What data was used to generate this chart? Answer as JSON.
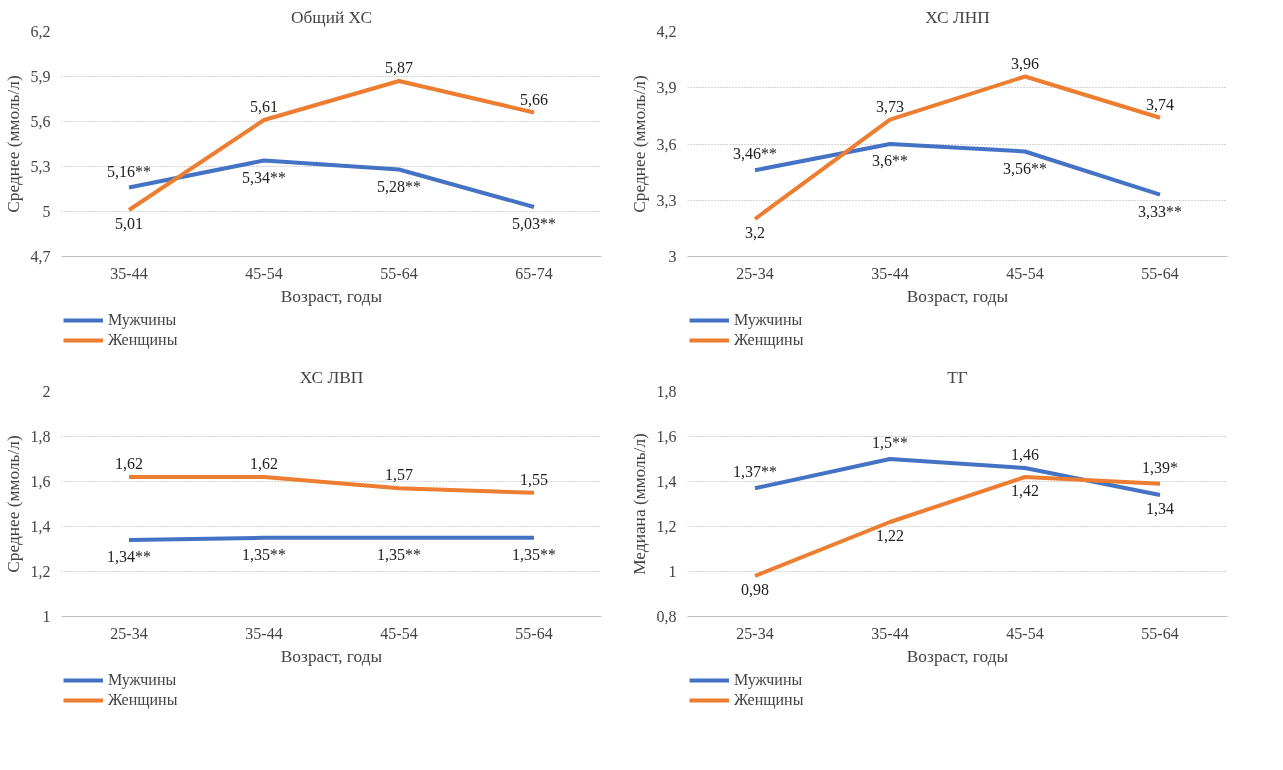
{
  "chart_data": [
    {
      "type": "line",
      "title": "Общий ХС",
      "xlabel": "Возраст, годы",
      "ylabel": "Среднее (ммоль/л)",
      "categories": [
        "35-44",
        "45-54",
        "55-64",
        "65-74"
      ],
      "ylim": [
        4.7,
        6.2
      ],
      "yticks": [
        {
          "value": 4.7,
          "label": "4,7"
        },
        5,
        {
          "value": 5.3,
          "label": "5,3"
        },
        {
          "value": 5.6,
          "label": "5,6"
        },
        {
          "value": 5.9,
          "label": "5,9"
        },
        {
          "value": 6.2,
          "label": "6,2"
        }
      ],
      "grid": "y",
      "legend": "bottom left",
      "series": [
        {
          "name": "Мужчины",
          "color": "#4472c4",
          "values": [
            5.16,
            5.34,
            5.28,
            5.03
          ],
          "value_labels": [
            "5,16**",
            "5,34**",
            "5,28**",
            "5,03**"
          ]
        },
        {
          "name": "Женщины",
          "color": "#ed7d31",
          "values": [
            5.01,
            5.61,
            5.87,
            5.66
          ],
          "value_labels": [
            "5,01",
            "5,61",
            "5,87",
            "5,66"
          ]
        }
      ]
    },
    {
      "type": "line",
      "title": "ХС ЛНП",
      "xlabel": "Возраст, годы",
      "ylabel": "Среднее (ммоль/л)",
      "categories": [
        "25-34",
        "35-44",
        "45-54",
        "55-64"
      ],
      "ylim": [
        3,
        4.2
      ],
      "yticks": [
        3,
        {
          "value": 3.3,
          "label": "3,3"
        },
        {
          "value": 3.6,
          "label": "3,6"
        },
        {
          "value": 3.9,
          "label": "3,9"
        },
        {
          "value": 4.2,
          "label": "4,2"
        }
      ],
      "grid": "y",
      "legend": "bottom left",
      "series": [
        {
          "name": "Мужчины",
          "color": "#4472c4",
          "values": [
            3.46,
            3.6,
            3.56,
            3.33
          ],
          "value_labels": [
            "3,46**",
            "3,6**",
            "3,56**",
            "3,33**"
          ]
        },
        {
          "name": "Женщины",
          "color": "#ed7d31",
          "values": [
            3.2,
            3.73,
            3.96,
            3.74
          ],
          "value_labels": [
            "3,2",
            "3,73",
            "3,96",
            "3,74"
          ]
        }
      ]
    },
    {
      "type": "line",
      "title": "ХС ЛВП",
      "xlabel": "Возраст, годы",
      "ylabel": "Среднее (ммоль/л)",
      "categories": [
        "25-34",
        "35-44",
        "45-54",
        "55-64"
      ],
      "ylim": [
        1,
        2
      ],
      "yticks": [
        1,
        {
          "value": 1.2,
          "label": "1,2"
        },
        {
          "value": 1.4,
          "label": "1,4"
        },
        {
          "value": 1.6,
          "label": "1,6"
        },
        {
          "value": 1.8,
          "label": "1,8"
        },
        2
      ],
      "grid": "y",
      "legend": "bottom left",
      "series": [
        {
          "name": "Мужчины",
          "color": "#4472c4",
          "values": [
            1.34,
            1.35,
            1.35,
            1.35
          ],
          "value_labels": [
            "1,34**",
            "1,35**",
            "1,35**",
            "1,35**"
          ]
        },
        {
          "name": "Женщины",
          "color": "#ed7d31",
          "values": [
            1.62,
            1.62,
            1.57,
            1.55
          ],
          "value_labels": [
            "1,62",
            "1,62",
            "1,57",
            "1,55"
          ]
        }
      ]
    },
    {
      "type": "line",
      "title": "ТГ",
      "xlabel": "Возраст, годы",
      "ylabel": "Медиана (ммоль/л)",
      "categories": [
        "25-34",
        "35-44",
        "45-54",
        "55-64"
      ],
      "ylim": [
        0.8,
        1.8
      ],
      "yticks": [
        {
          "value": 0.8,
          "label": "0,8"
        },
        1,
        {
          "value": 1.2,
          "label": "1,2"
        },
        {
          "value": 1.4,
          "label": "1,4"
        },
        {
          "value": 1.6,
          "label": "1,6"
        },
        {
          "value": 1.8,
          "label": "1,8"
        }
      ],
      "grid": "y",
      "legend": "bottom left",
      "series": [
        {
          "name": "Мужчины",
          "color": "#4472c4",
          "values": [
            1.37,
            1.5,
            1.46,
            1.34
          ],
          "value_labels": [
            "1,37**",
            "1,5**",
            "1,46",
            "1,34"
          ]
        },
        {
          "name": "Женщины",
          "color": "#ed7d31",
          "values": [
            0.98,
            1.22,
            1.42,
            1.39
          ],
          "value_labels": [
            "0,98",
            "1,22",
            "1,42",
            "1,39*"
          ]
        }
      ]
    }
  ]
}
